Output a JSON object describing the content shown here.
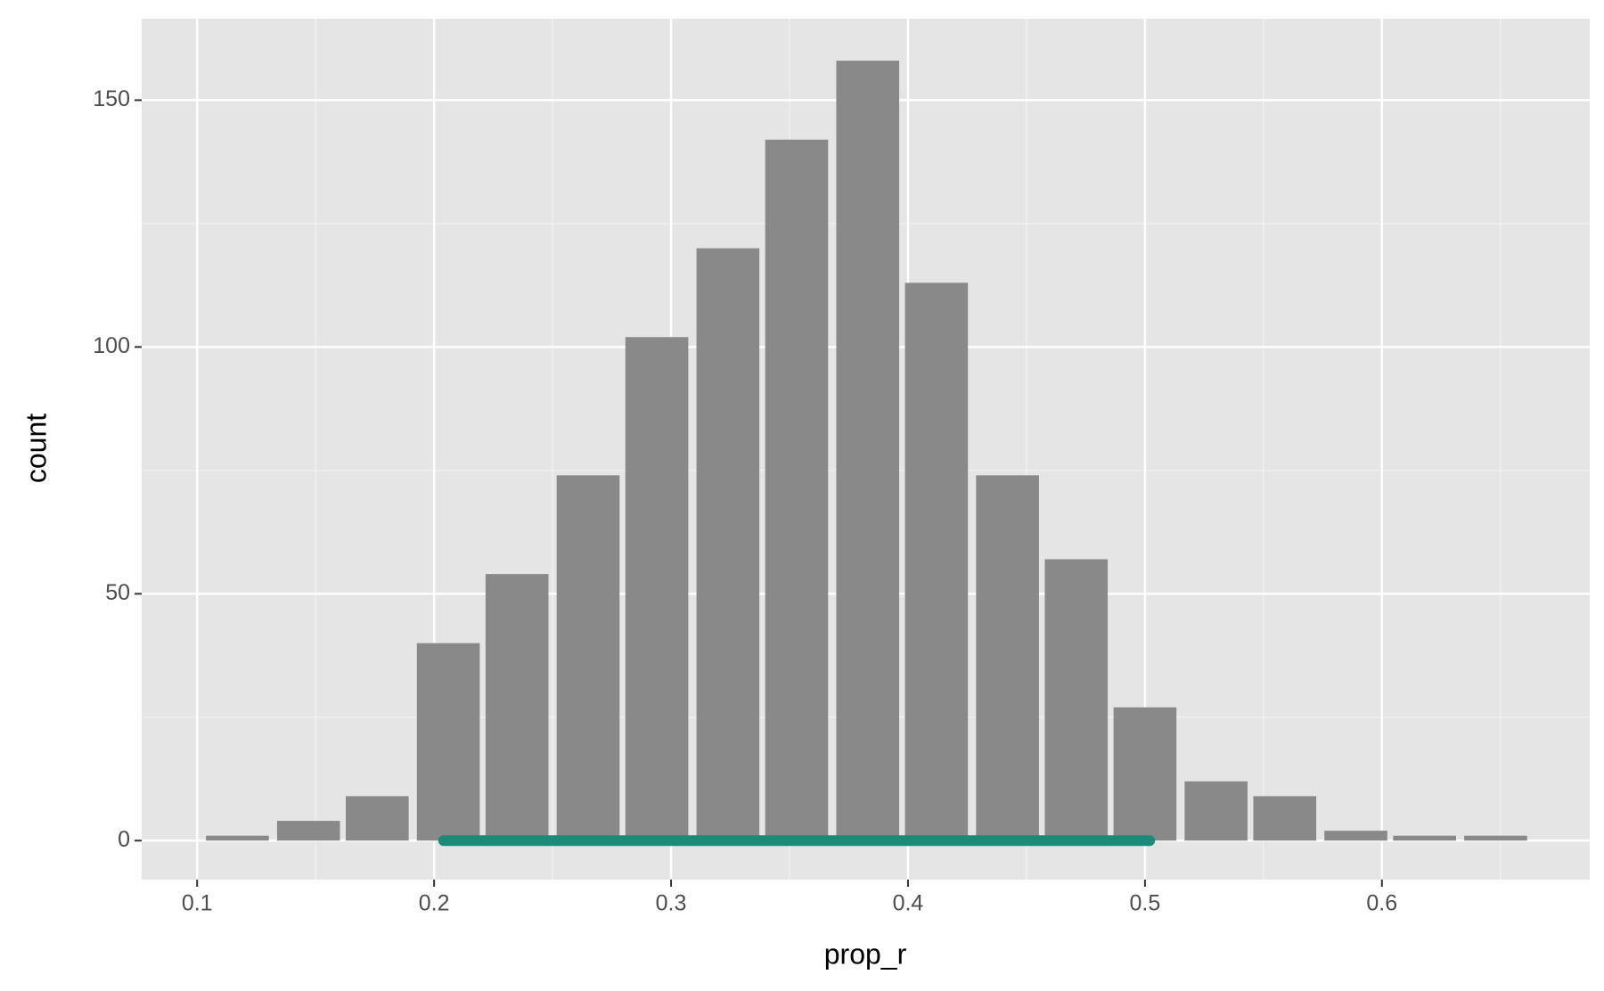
{
  "chart_data": {
    "type": "bar",
    "x_label": "prop_r",
    "y_label": "count",
    "x": [
      0.117,
      0.147,
      0.176,
      0.206,
      0.235,
      0.265,
      0.294,
      0.324,
      0.353,
      0.383,
      0.412,
      0.442,
      0.471,
      0.5,
      0.53,
      0.559,
      0.589,
      0.618,
      0.648
    ],
    "values": [
      1,
      4,
      9,
      40,
      54,
      74,
      102,
      120,
      142,
      158,
      113,
      74,
      57,
      27,
      12,
      9,
      2,
      1,
      1
    ],
    "color": "#898989",
    "interval": {
      "x": [
        0.204,
        0.502
      ],
      "y": 0,
      "color": "#1b8a78"
    },
    "xlim": [
      0.0766,
      0.6877
    ],
    "xticks": [
      0.1,
      0.2,
      0.3,
      0.4,
      0.5,
      0.6
    ],
    "minor_xticks": [
      0.15,
      0.25,
      0.35,
      0.45,
      0.55,
      0.65
    ],
    "ylim": [
      -7.9,
      166.5
    ],
    "yticks": [
      0,
      50,
      100,
      150
    ],
    "minor_yticks": [
      25,
      75,
      125
    ],
    "grid": true
  }
}
